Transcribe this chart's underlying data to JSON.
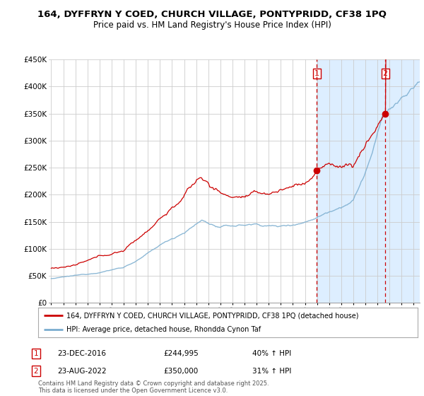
{
  "title_line1": "164, DYFFRYN Y COED, CHURCH VILLAGE, PONTYPRIDD, CF38 1PQ",
  "title_line2": "Price paid vs. HM Land Registry's House Price Index (HPI)",
  "ylim": [
    0,
    450000
  ],
  "yticks": [
    0,
    50000,
    100000,
    150000,
    200000,
    250000,
    300000,
    350000,
    400000,
    450000
  ],
  "ytick_labels": [
    "£0",
    "£50K",
    "£100K",
    "£150K",
    "£200K",
    "£250K",
    "£300K",
    "£350K",
    "£400K",
    "£450K"
  ],
  "xmin": 1995,
  "xmax": 2025.5,
  "sale1_year": 2016.97,
  "sale1_price": 244995,
  "sale2_year": 2022.64,
  "sale2_price": 350000,
  "legend_sale": "164, DYFFRYN Y COED, CHURCH VILLAGE, PONTYPRIDD, CF38 1PQ (detached house)",
  "legend_hpi": "HPI: Average price, detached house, Rhondda Cynon Taf",
  "note1_label": "1",
  "note1_date": "23-DEC-2016",
  "note1_price": "£244,995",
  "note1_pct": "40% ↑ HPI",
  "note2_label": "2",
  "note2_date": "23-AUG-2022",
  "note2_price": "£350,000",
  "note2_pct": "31% ↑ HPI",
  "footer": "Contains HM Land Registry data © Crown copyright and database right 2025.\nThis data is licensed under the Open Government Licence v3.0.",
  "red_color": "#cc0000",
  "blue_color": "#7aadcf",
  "shade_color": "#ddeeff",
  "grid_color": "#cccccc",
  "bg_color": "#ffffff"
}
